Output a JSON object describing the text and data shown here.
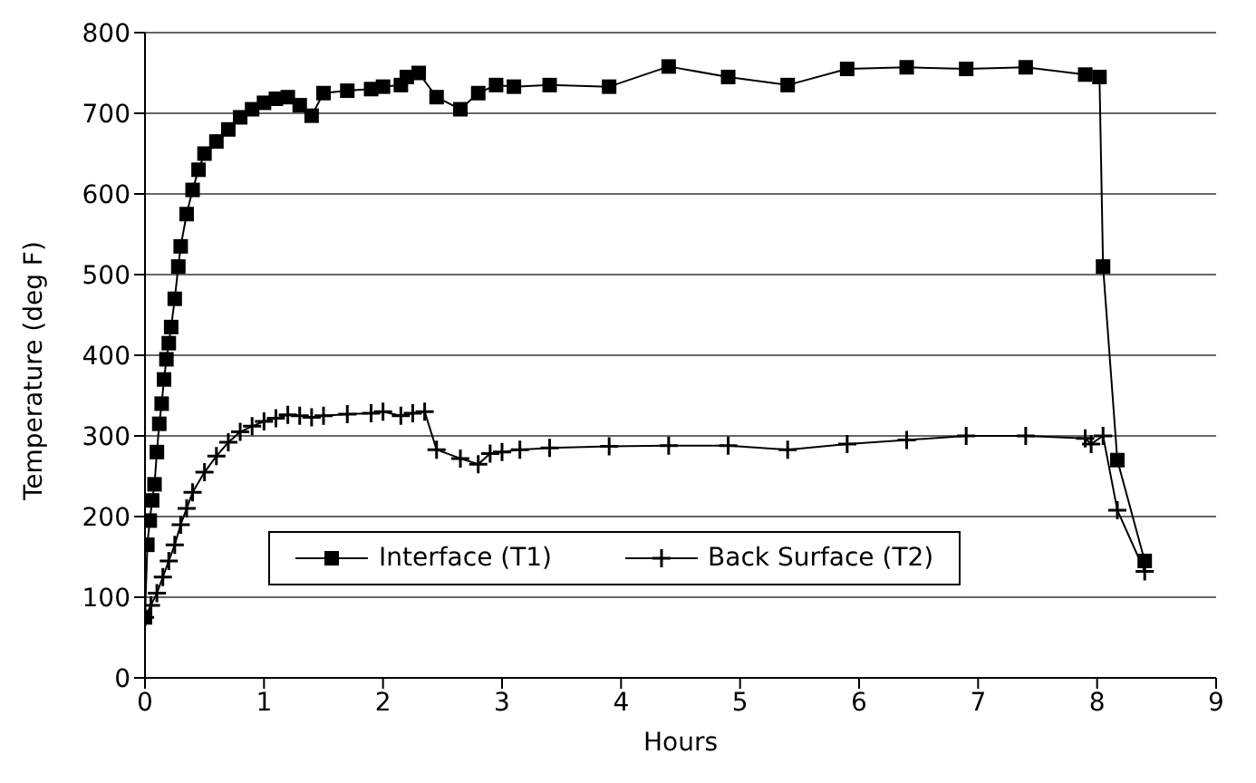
{
  "chart_data": {
    "type": "line",
    "xlabel": "Hours",
    "ylabel": "Temperature (deg F)",
    "xlim": [
      0,
      9
    ],
    "xticks": [
      0,
      1,
      2,
      3,
      4,
      5,
      6,
      7,
      8,
      9
    ],
    "ylim": [
      0,
      800
    ],
    "yticks": [
      0,
      100,
      200,
      300,
      400,
      500,
      600,
      700,
      800
    ],
    "grid": "y",
    "legend": "bottom",
    "series": [
      {
        "name": "Interface (T1)",
        "color": "#000000",
        "marker": "square",
        "x": [
          0,
          0.02,
          0.04,
          0.06,
          0.08,
          0.1,
          0.12,
          0.14,
          0.16,
          0.18,
          0.2,
          0.22,
          0.25,
          0.28,
          0.3,
          0.35,
          0.4,
          0.45,
          0.5,
          0.6,
          0.7,
          0.8,
          0.9,
          1.0,
          1.1,
          1.2,
          1.3,
          1.4,
          1.5,
          1.7,
          1.9,
          2.0,
          2.15,
          2.2,
          2.3,
          2.45,
          2.65,
          2.8,
          2.95,
          3.1,
          3.4,
          3.9,
          4.4,
          4.9,
          5.4,
          5.9,
          6.4,
          6.9,
          7.4,
          7.9,
          8.02,
          8.05,
          8.17,
          8.4
        ],
        "values": [
          75,
          165,
          195,
          220,
          240,
          280,
          315,
          340,
          370,
          395,
          415,
          435,
          470,
          510,
          535,
          575,
          605,
          630,
          650,
          665,
          680,
          695,
          705,
          713,
          718,
          720,
          710,
          697,
          725,
          728,
          730,
          733,
          735,
          745,
          750,
          720,
          705,
          725,
          735,
          733,
          735,
          733,
          758,
          745,
          735,
          755,
          757,
          755,
          757,
          748,
          745,
          510,
          270,
          145
        ]
      },
      {
        "name": "Back Surface (T2)",
        "color": "#000000",
        "marker": "cross",
        "x": [
          0,
          0.05,
          0.1,
          0.15,
          0.2,
          0.25,
          0.3,
          0.35,
          0.4,
          0.5,
          0.6,
          0.7,
          0.8,
          0.9,
          1.0,
          1.1,
          1.2,
          1.3,
          1.4,
          1.5,
          1.7,
          1.9,
          2.0,
          2.15,
          2.25,
          2.35,
          2.45,
          2.65,
          2.8,
          2.9,
          3.0,
          3.15,
          3.4,
          3.9,
          4.4,
          4.9,
          5.4,
          5.9,
          6.4,
          6.9,
          7.4,
          7.9,
          7.95,
          8.05,
          8.17,
          8.4
        ],
        "values": [
          75,
          90,
          105,
          125,
          145,
          165,
          190,
          210,
          230,
          255,
          275,
          292,
          305,
          312,
          318,
          322,
          326,
          325,
          323,
          325,
          327,
          328,
          330,
          325,
          328,
          330,
          283,
          272,
          265,
          278,
          280,
          283,
          285,
          287,
          288,
          288,
          283,
          290,
          295,
          300,
          300,
          297,
          290,
          300,
          208,
          132
        ]
      }
    ]
  }
}
